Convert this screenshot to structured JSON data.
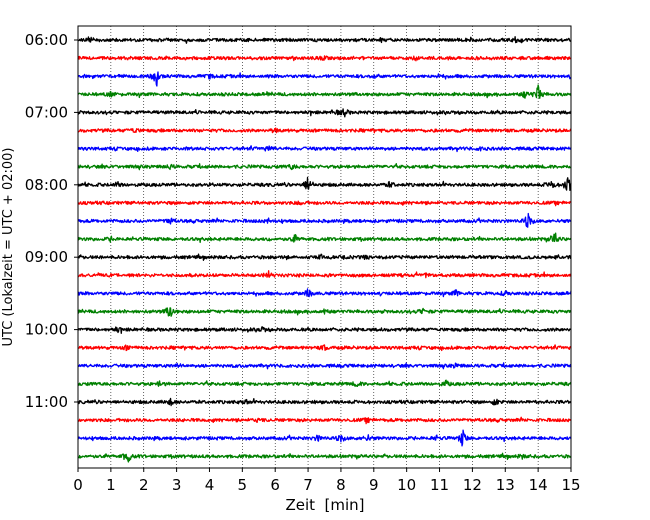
{
  "chart_data": {
    "type": "line",
    "title": "",
    "xlabel": "Zeit  [min]",
    "ylabel": "UTC (Lokalzeit = UTC + 02:00)",
    "x_ticks": [
      "0",
      "1",
      "2",
      "3",
      "4",
      "5",
      "6",
      "7",
      "8",
      "9",
      "10",
      "11",
      "12",
      "13",
      "14",
      "15"
    ],
    "xlim": [
      0,
      15
    ],
    "grid": "vertical-dotted",
    "y_tick_labels": [
      {
        "label": "06:00",
        "trace": 0
      },
      {
        "label": "07:00",
        "trace": 4
      },
      {
        "label": "08:00",
        "trace": 8
      },
      {
        "label": "09:00",
        "trace": 12
      },
      {
        "label": "10:00",
        "trace": 16
      },
      {
        "label": "11:00",
        "trace": 20
      }
    ],
    "series_colors": [
      "#000000",
      "#ff0000",
      "#0000ff",
      "#008000"
    ],
    "traces": [
      {
        "start": "06:00",
        "events": [
          [
            0.35,
            0.5
          ],
          [
            13.3,
            0.5
          ]
        ]
      },
      {
        "start": "06:15",
        "events": [
          [
            7.5,
            0.4
          ],
          [
            10.2,
            0.3
          ]
        ]
      },
      {
        "start": "06:30",
        "events": [
          [
            2.4,
            1.8
          ],
          [
            2.3,
            0.6
          ],
          [
            4.0,
            0.4
          ],
          [
            9.0,
            0.4
          ],
          [
            11.0,
            0.3
          ]
        ]
      },
      {
        "start": "06:45",
        "events": [
          [
            1.0,
            0.6
          ],
          [
            14.0,
            2.0
          ],
          [
            13.6,
            0.7
          ]
        ]
      },
      {
        "start": "07:00",
        "events": [
          [
            8.1,
            0.9
          ],
          [
            7.8,
            0.4
          ]
        ]
      },
      {
        "start": "07:15",
        "events": [
          [
            1.7,
            0.6
          ],
          [
            6.0,
            0.4
          ]
        ]
      },
      {
        "start": "07:30",
        "events": [
          [
            5.8,
            0.6
          ],
          [
            12.3,
            0.4
          ]
        ]
      },
      {
        "start": "07:45",
        "events": [
          [
            2.8,
            0.4
          ],
          [
            6.5,
            0.5
          ]
        ]
      },
      {
        "start": "08:00",
        "events": [
          [
            7.0,
            2.0
          ],
          [
            14.9,
            2.4
          ],
          [
            14.4,
            0.9
          ],
          [
            9.5,
            0.6
          ],
          [
            1.2,
            0.5
          ]
        ]
      },
      {
        "start": "08:15",
        "events": [
          [
            6.8,
            0.4
          ]
        ]
      },
      {
        "start": "08:30",
        "events": [
          [
            2.8,
            0.8
          ],
          [
            13.7,
            1.9
          ],
          [
            5.8,
            0.4
          ]
        ]
      },
      {
        "start": "08:45",
        "events": [
          [
            14.5,
            1.6
          ],
          [
            6.6,
            0.8
          ],
          [
            1.0,
            0.4
          ]
        ]
      },
      {
        "start": "09:00",
        "events": [
          [
            7.4,
            0.4
          ],
          [
            8.7,
            0.3
          ]
        ]
      },
      {
        "start": "09:15",
        "events": [
          [
            5.8,
            0.7
          ],
          [
            10.6,
            0.4
          ]
        ]
      },
      {
        "start": "09:30",
        "events": [
          [
            7.0,
            0.9
          ],
          [
            11.5,
            0.6
          ],
          [
            13.0,
            0.4
          ]
        ]
      },
      {
        "start": "09:45",
        "events": [
          [
            2.8,
            1.7
          ],
          [
            10.5,
            0.6
          ],
          [
            7.5,
            0.4
          ]
        ]
      },
      {
        "start": "10:00",
        "events": [
          [
            1.2,
            0.5
          ],
          [
            5.6,
            0.4
          ]
        ]
      },
      {
        "start": "10:15",
        "events": [
          [
            1.5,
            0.5
          ],
          [
            7.5,
            0.5
          ]
        ]
      },
      {
        "start": "10:30",
        "events": [
          [
            3.0,
            0.4
          ],
          [
            11.5,
            0.4
          ]
        ]
      },
      {
        "start": "10:45",
        "events": [
          [
            2.5,
            0.5
          ],
          [
            8.5,
            0.5
          ],
          [
            11.2,
            0.6
          ]
        ]
      },
      {
        "start": "11:00",
        "events": [
          [
            2.8,
            0.8
          ],
          [
            12.7,
            0.7
          ],
          [
            5.1,
            0.4
          ]
        ]
      },
      {
        "start": "11:15",
        "events": [
          [
            5.5,
            0.4
          ],
          [
            8.8,
            0.3
          ]
        ]
      },
      {
        "start": "11:30",
        "events": [
          [
            11.7,
            1.9
          ],
          [
            8.0,
            0.9
          ],
          [
            8.8,
            0.7
          ],
          [
            7.3,
            0.6
          ],
          [
            10.9,
            0.4
          ]
        ]
      },
      {
        "start": "11:45",
        "events": [
          [
            1.5,
            1.6
          ],
          [
            13.5,
            0.4
          ]
        ]
      }
    ]
  }
}
